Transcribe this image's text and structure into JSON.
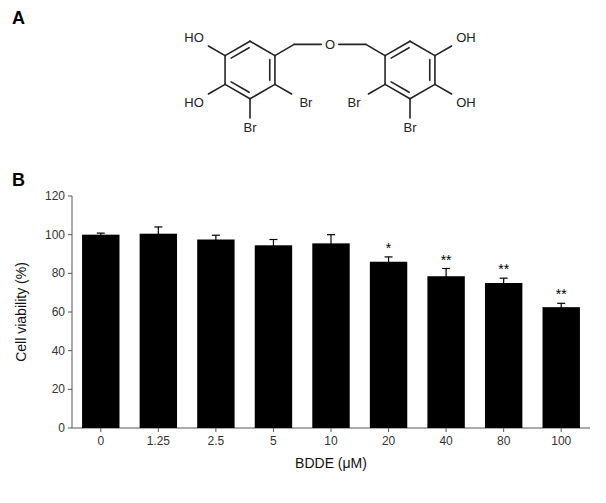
{
  "chart_data": {
    "type": "bar",
    "categories": [
      "0",
      "1.25",
      "2.5",
      "5",
      "10",
      "20",
      "40",
      "80",
      "100"
    ],
    "values": [
      100.0,
      100.5,
      97.5,
      94.5,
      95.5,
      86.0,
      78.5,
      75.0,
      62.5
    ],
    "errors": [
      0.8,
      3.5,
      2.2,
      3.0,
      4.5,
      2.5,
      4.0,
      2.5,
      2.0
    ],
    "significance": [
      null,
      null,
      null,
      null,
      null,
      "*",
      "**",
      "**",
      "**"
    ],
    "color": "#000000",
    "ylabel": "Cell viability (%)",
    "xlabel": "BDDE (μM)",
    "ylim": [
      0,
      120
    ],
    "yticks": [
      0,
      20,
      40,
      60,
      80,
      100,
      120
    ],
    "grid": false,
    "annotations": [
      "A",
      "O",
      "HO",
      "HO",
      "Br",
      "Br",
      "OH",
      "OH",
      "Br",
      "Br",
      "B"
    ]
  }
}
